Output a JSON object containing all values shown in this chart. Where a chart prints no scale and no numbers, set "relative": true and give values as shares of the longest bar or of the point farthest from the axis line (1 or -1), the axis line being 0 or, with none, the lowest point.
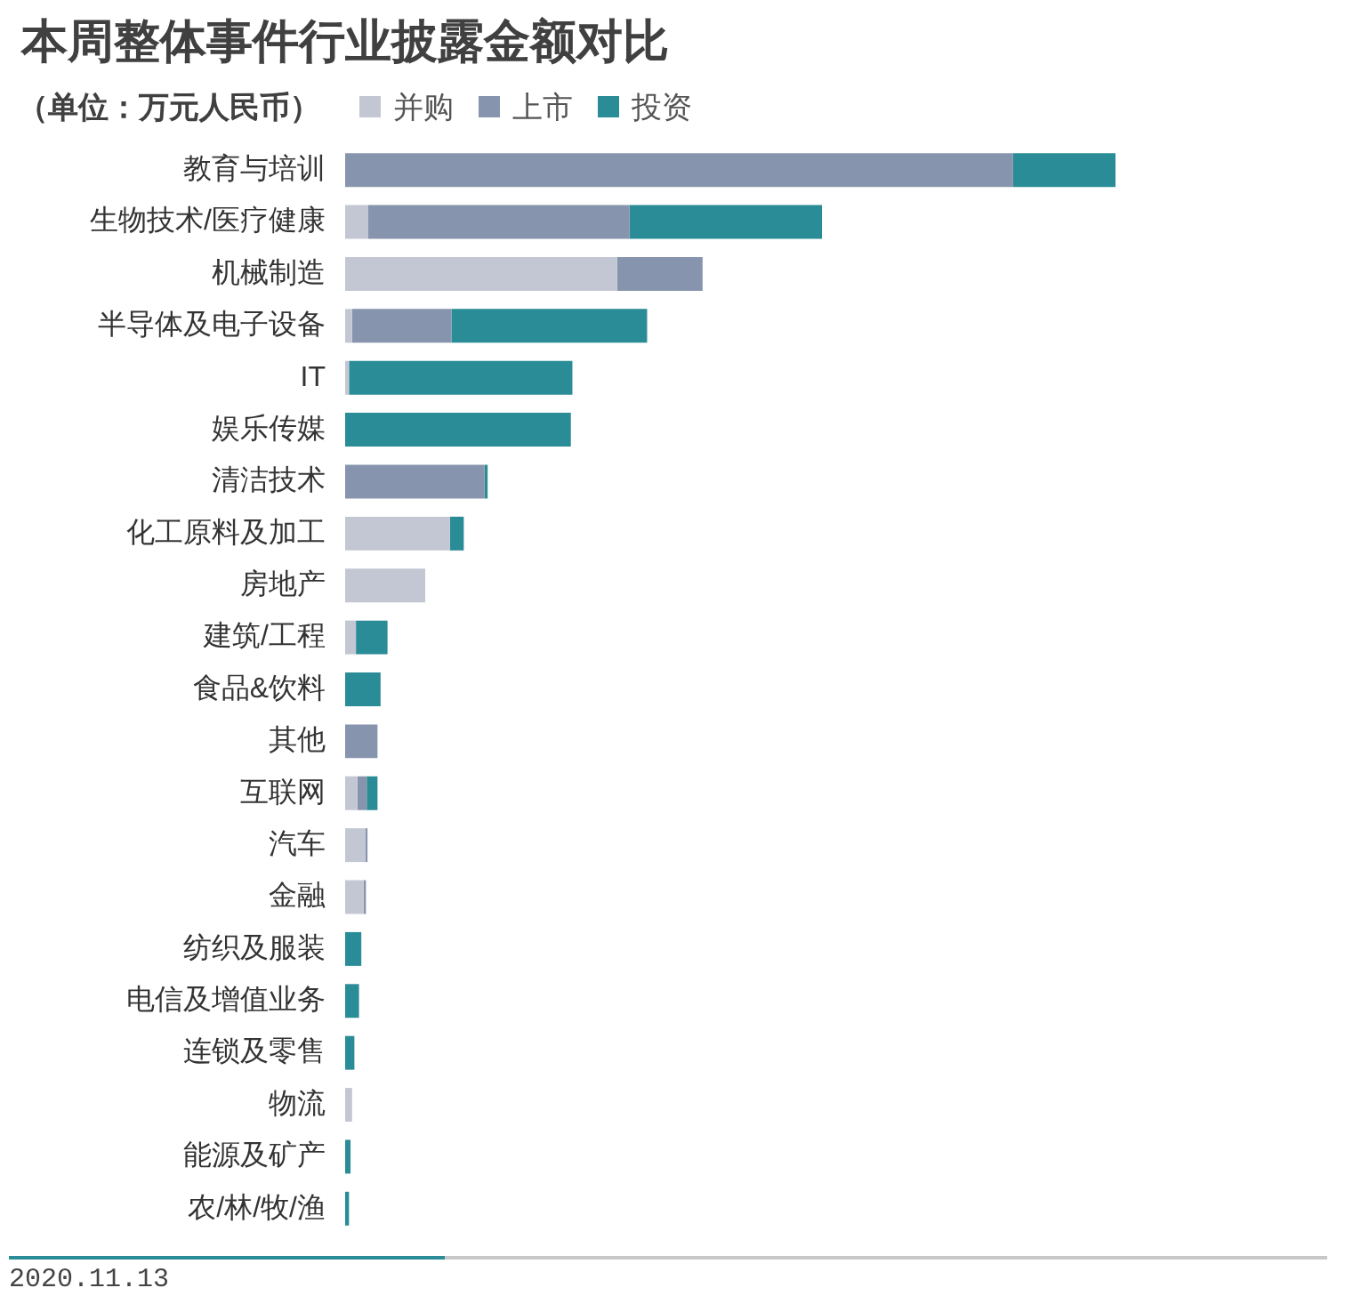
{
  "chart_data": {
    "type": "bar",
    "orientation": "horizontal",
    "stacked": true,
    "relative": true,
    "title": "本周整体事件行业披露金额对比",
    "subtitle": "（单位：万元人民币）",
    "legend": "top",
    "categories": [
      "教育与培训",
      "生物技术/医疗健康",
      "机械制造",
      "半导体及电子设备",
      "IT",
      "娱乐传媒",
      "清洁技术",
      "化工原料及加工",
      "房地产",
      "建筑/工程",
      "食品&饮料",
      "其他",
      "互联网",
      "汽车",
      "金融",
      "纺织及服装",
      "电信及增值业务",
      "连锁及零售",
      "物流",
      "能源及矿产",
      "农/林/牧/渔"
    ],
    "series": [
      {
        "name": "并购",
        "color": "#c3c7d4",
        "values": [
          null,
          0.03,
          0.353,
          0.009,
          0.005,
          null,
          null,
          0.136,
          0.104,
          0.014,
          null,
          null,
          0.016,
          0.026,
          0.024,
          null,
          null,
          null,
          0.009,
          null,
          null
        ]
      },
      {
        "name": "上市",
        "color": "#8794ad",
        "values": [
          0.867,
          0.339,
          0.111,
          0.129,
          null,
          null,
          0.181,
          null,
          null,
          null,
          null,
          0.042,
          0.012,
          0.003,
          0.003,
          null,
          null,
          null,
          null,
          null,
          null
        ]
      },
      {
        "name": "投资",
        "color": "#2a8c96",
        "values": [
          0.133,
          0.25,
          null,
          0.254,
          0.29,
          0.293,
          0.004,
          0.018,
          null,
          0.041,
          0.046,
          null,
          0.014,
          null,
          null,
          0.021,
          0.018,
          0.012,
          null,
          0.007,
          0.005
        ]
      }
    ],
    "annotations": [
      "2020.11.13"
    ]
  }
}
